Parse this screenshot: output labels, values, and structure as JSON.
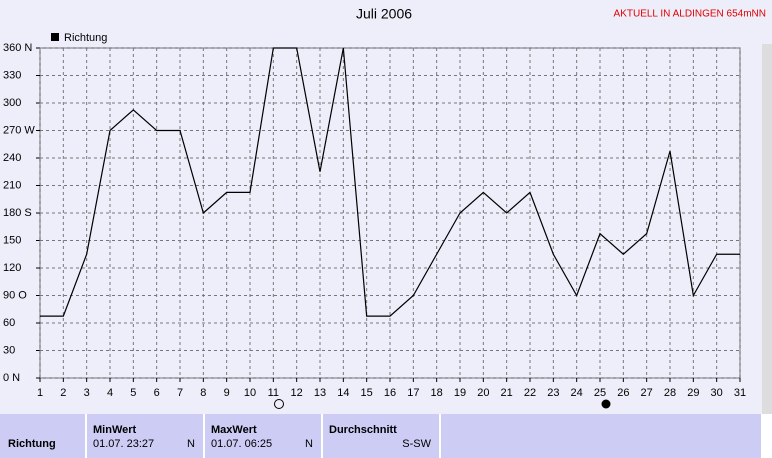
{
  "chart_data": {
    "type": "line",
    "title": "Juli 2006",
    "subtitle": "AKTUELL IN ALDINGEN 654mNN",
    "x": [
      1,
      2,
      3,
      4,
      5,
      6,
      7,
      8,
      9,
      10,
      11,
      12,
      13,
      14,
      15,
      16,
      17,
      18,
      19,
      20,
      21,
      22,
      23,
      24,
      25,
      26,
      27,
      28,
      29,
      30,
      31
    ],
    "xlim": [
      1,
      31
    ],
    "xticks": [
      1,
      2,
      3,
      4,
      5,
      6,
      7,
      8,
      9,
      10,
      11,
      12,
      13,
      14,
      15,
      16,
      17,
      18,
      19,
      20,
      21,
      22,
      23,
      24,
      25,
      26,
      27,
      28,
      29,
      30,
      31
    ],
    "series": [
      {
        "name": "Richtung",
        "color": "#000000",
        "values": [
          67.5,
          67.5,
          135,
          270,
          292.5,
          270,
          270,
          180,
          202.5,
          202.5,
          360,
          360,
          225,
          360,
          67.5,
          67.5,
          90,
          135,
          180,
          202.5,
          180,
          202.5,
          135,
          90,
          157.5,
          135,
          157.5,
          247.5,
          90,
          135,
          135
        ]
      }
    ],
    "ylim": [
      0,
      360
    ],
    "yticks": [
      {
        "value": 0,
        "label": "0 N"
      },
      30,
      60,
      {
        "value": 90,
        "label": "90 O"
      },
      120,
      150,
      {
        "value": 180,
        "label": "180 S"
      },
      210,
      240,
      {
        "value": 270,
        "label": "270 W"
      },
      300,
      330,
      {
        "value": 360,
        "label": "360 N"
      }
    ],
    "grid": true
  },
  "table": {
    "headers": [
      "MinWert",
      "MaxWert",
      "Durchschnitt"
    ],
    "row": {
      "label": "Richtung",
      "min_time": "01.07.  23:27",
      "min_dir": "N",
      "max_time": "01.07.  06:25",
      "max_dir": "N",
      "avg": "S-SW"
    }
  }
}
